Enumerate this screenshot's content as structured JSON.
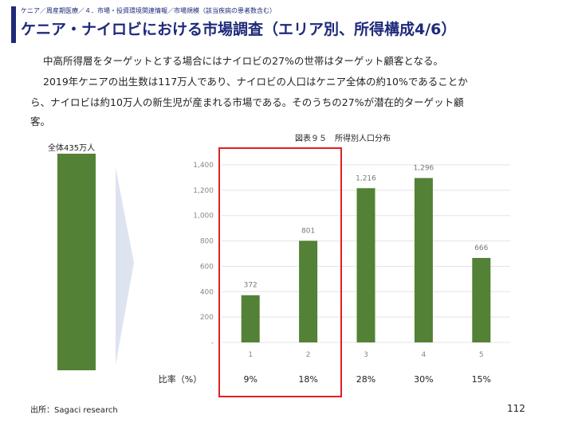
{
  "header": {
    "breadcrumb": "ケニア／周産期医療／４．市場・投資環境関連情報／市場規模（該当疾病の患者数含む）",
    "title": "ケニア・ナイロビにおける市場調査（エリア別、所得構成4/6）"
  },
  "body": {
    "line1": "中高所得層をターゲットとする場合にはナイロビの27%の世帯はターゲット顧客となる。",
    "line2": "2019年ケニアの出生数は117万人であり、ナイロビの人口はケニア全体の約10%であることか",
    "line3": "ら、ナイロビは約10万人の新生児が産まれる市場である。そのうちの27%が潜在的ターゲット顧",
    "line4": "客。"
  },
  "total": {
    "label": "全体435万人"
  },
  "figure": {
    "caption": "図表９５　所得別人口分布"
  },
  "colors": {
    "bar": "#538135",
    "highlight": "#e02020",
    "title": "#1f2a7a"
  },
  "chart_data": {
    "type": "bar",
    "categories": [
      "1",
      "2",
      "3",
      "4",
      "5"
    ],
    "values": [
      372,
      801,
      1216,
      1296,
      666
    ],
    "value_labels": [
      "372",
      "801",
      "1,216",
      "1,296",
      "666"
    ],
    "yticks": [
      "-",
      "200",
      "400",
      "600",
      "800",
      "1,000",
      "1,200",
      "1,400"
    ],
    "ylim": [
      0,
      1400
    ],
    "grid": true
  },
  "ratio": {
    "label": "比率（%）",
    "values": [
      "9%",
      "18%",
      "28%",
      "30%",
      "15%"
    ]
  },
  "footer": {
    "source": "出所：Sagaci research",
    "page": "112"
  }
}
